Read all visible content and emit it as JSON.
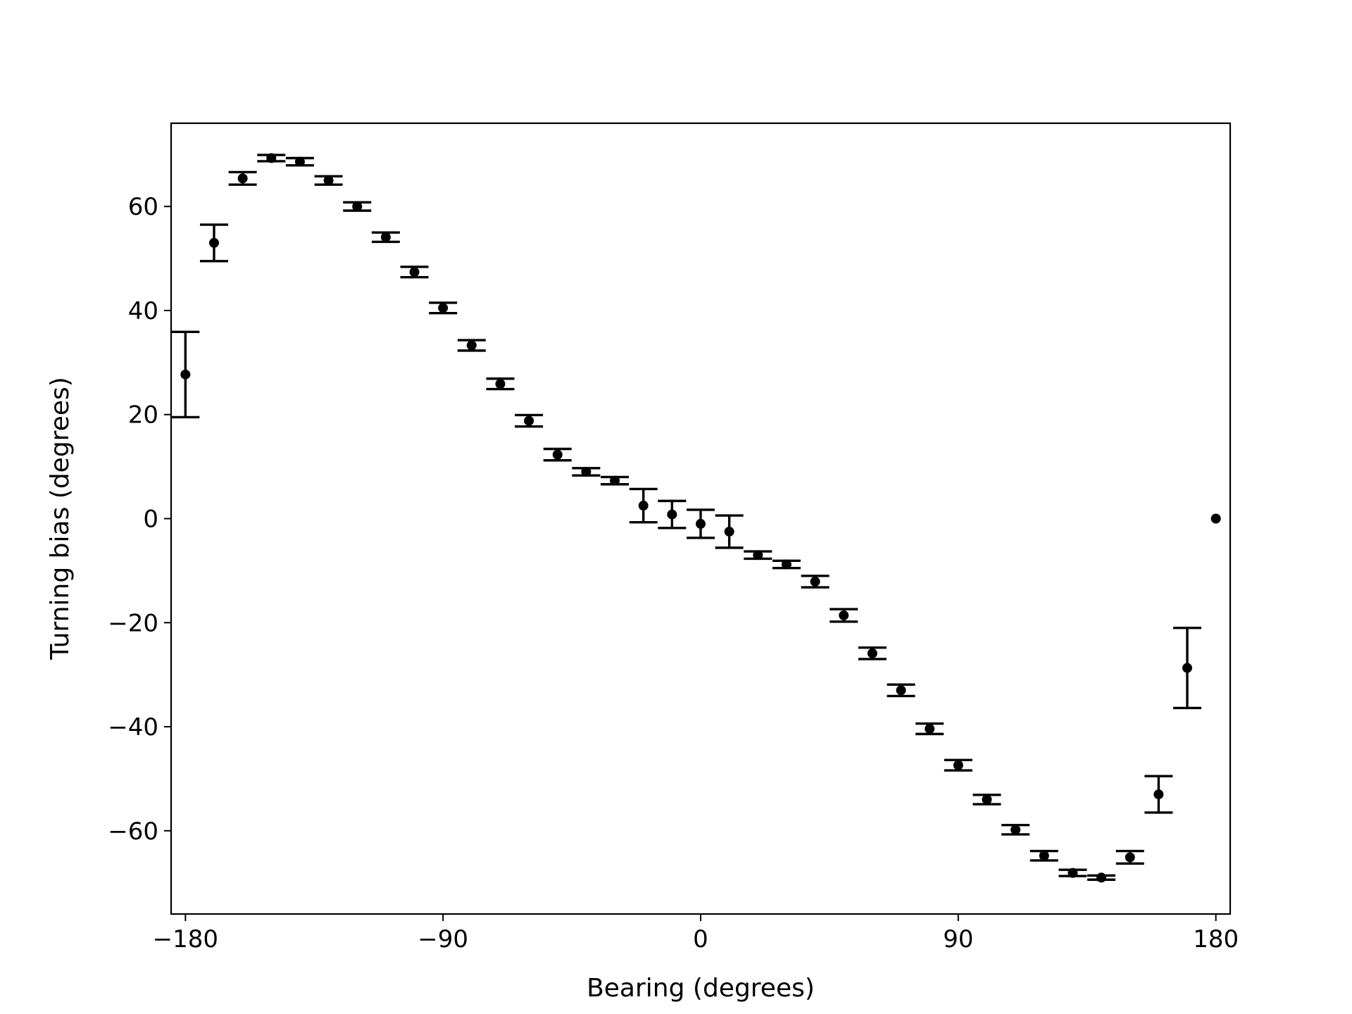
{
  "chart_data": {
    "type": "scatter",
    "title": "",
    "xlabel": "Bearing (degrees)",
    "ylabel": "Turning bias (degrees)",
    "xlim": [
      -185,
      185
    ],
    "ylim": [
      -76,
      76
    ],
    "xticks": [
      -180,
      -90,
      0,
      90,
      180
    ],
    "xtick_labels": [
      "−180",
      "−90",
      "0",
      "90",
      "180"
    ],
    "yticks": [
      -60,
      -40,
      -20,
      0,
      20,
      40,
      60
    ],
    "ytick_labels": [
      "−60",
      "−40",
      "−20",
      "0",
      "20",
      "40",
      "60"
    ],
    "grid": false,
    "legend": "none",
    "color": "#000000",
    "series": [
      {
        "x": [
          -180,
          -170,
          -160,
          -150,
          -140,
          -130,
          -120,
          -110,
          -100,
          -90,
          -80,
          -70,
          -60,
          -50,
          -40,
          -30,
          -20,
          -10,
          0,
          10,
          20,
          30,
          40,
          50,
          60,
          70,
          80,
          90,
          100,
          110,
          120,
          130,
          140,
          150,
          160,
          170,
          180
        ],
        "y": [
          27.7,
          53.0,
          65.4,
          69.3,
          68.6,
          65.0,
          60.0,
          54.1,
          47.4,
          40.5,
          33.3,
          25.9,
          18.8,
          12.3,
          9.0,
          7.3,
          2.5,
          0.8,
          -1.0,
          -2.5,
          -7.0,
          -8.8,
          -12.1,
          -18.6,
          -25.9,
          -33.0,
          -40.4,
          -47.4,
          -54.0,
          -59.8,
          -64.8,
          -68.1,
          -69.0,
          -65.1,
          -53.0,
          -28.7,
          0
        ],
        "yerr": [
          8.2,
          3.5,
          1.2,
          0.6,
          0.7,
          0.8,
          0.8,
          0.9,
          1.0,
          1.0,
          1.0,
          1.0,
          1.1,
          1.1,
          0.7,
          0.7,
          3.2,
          2.6,
          2.7,
          3.1,
          0.7,
          0.7,
          1.1,
          1.2,
          1.1,
          1.1,
          1.0,
          1.0,
          0.9,
          0.9,
          0.9,
          0.6,
          0.4,
          1.2,
          3.5,
          7.7,
          0
        ]
      }
    ]
  }
}
